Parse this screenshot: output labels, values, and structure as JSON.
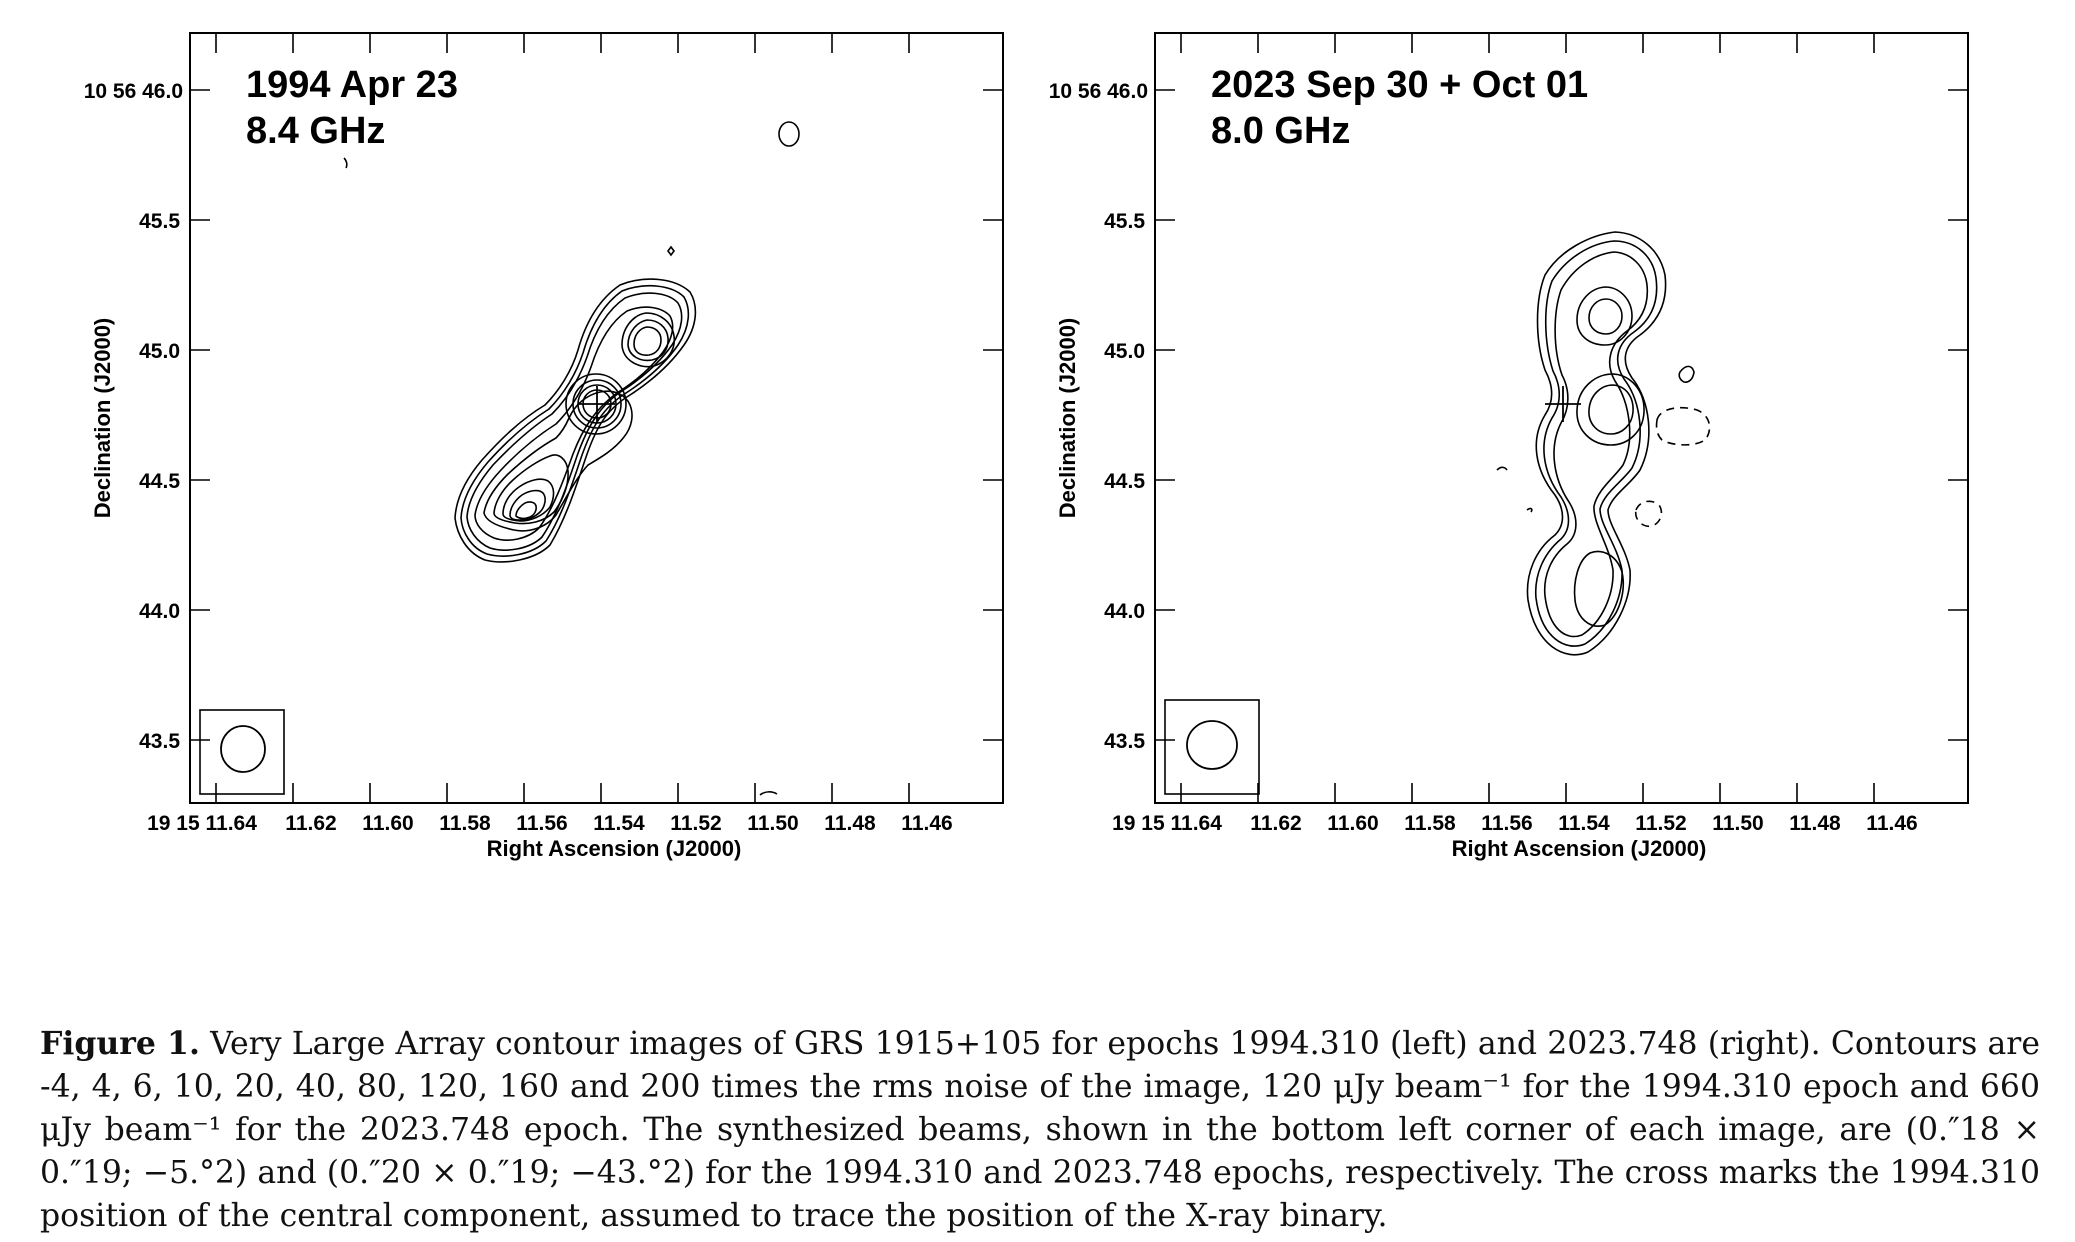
{
  "panels": [
    {
      "epoch_label": "1994 Apr 23",
      "freq_label": "8.4 GHz",
      "ylabel": "Declination (J2000)",
      "xlabel": "Right Ascension (J2000)",
      "yticks": [
        "10 56 46.0",
        "45.5",
        "45.0",
        "44.5",
        "44.0",
        "43.5"
      ],
      "xticks": [
        "19 15 11.64",
        "11.62",
        "11.60",
        "11.58",
        "11.56",
        "11.54",
        "11.52",
        "11.50",
        "11.48",
        "11.46"
      ]
    },
    {
      "epoch_label": "2023 Sep 30 + Oct 01",
      "freq_label": "8.0 GHz",
      "ylabel": "Declination (J2000)",
      "xlabel": "Right Ascension (J2000)",
      "yticks": [
        "10 56 46.0",
        "45.5",
        "45.0",
        "44.5",
        "44.0",
        "43.5"
      ],
      "xticks": [
        "19 15 11.64",
        "11.62",
        "11.60",
        "11.58",
        "11.56",
        "11.54",
        "11.52",
        "11.50",
        "11.48",
        "11.46"
      ]
    }
  ],
  "caption": {
    "label": "Figure 1.",
    "text": "Very Large Array contour images of GRS 1915+105 for epochs 1994.310 (left) and 2023.748 (right). Contours are -4, 4, 6, 10, 20, 40, 80, 120, 160 and 200 times the rms noise of the image, 120 μJy beam⁻¹ for the 1994.310 epoch and 660 μJy beam⁻¹ for the 2023.748 epoch. The synthesized beams, shown in the bottom left corner of each image, are (0.″18 × 0.″19; −5.°2) and (0.″20 × 0.″19; −43.°2) for the 1994.310 and 2023.748 epochs, respectively. The cross marks the 1994.310 position of the central component, assumed to trace the position of the X-ray binary."
  }
}
